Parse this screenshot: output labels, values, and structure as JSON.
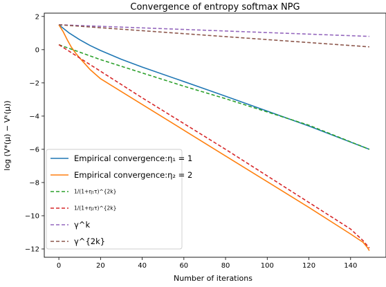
{
  "chart_data": {
    "type": "line",
    "title": "Convergence of entropy softmax NPG",
    "xlabel": "Number of iterations",
    "ylabel": "log (V*(μ) − Vᵏ(μ))",
    "xlim": [
      -7,
      157
    ],
    "ylim": [
      -12.5,
      2.2
    ],
    "xticks": [
      0,
      20,
      40,
      60,
      80,
      100,
      120,
      140
    ],
    "yticks": [
      -12,
      -10,
      -8,
      -6,
      -4,
      -2,
      0,
      2
    ],
    "grid": false,
    "legend_position": "lower-left",
    "series": [
      {
        "name": "Empirical convergence:η₁ = 1",
        "color": "#1f77b4",
        "style": "solid",
        "x": [
          0,
          2,
          5,
          10,
          15,
          20,
          30,
          40,
          60,
          80,
          100,
          120,
          149
        ],
        "y": [
          1.5,
          1.3,
          1.0,
          0.6,
          0.25,
          -0.05,
          -0.58,
          -1.05,
          -1.92,
          -2.8,
          -3.7,
          -4.6,
          -6.0
        ]
      },
      {
        "name": "Empirical convergence:η₂ = 2",
        "color": "#ff7f0e",
        "style": "solid",
        "x": [
          0,
          2,
          4,
          6,
          8,
          10,
          15,
          20,
          40,
          60,
          80,
          100,
          120,
          140,
          146,
          148,
          149
        ],
        "y": [
          1.5,
          1.1,
          0.6,
          0.15,
          -0.2,
          -0.5,
          -1.2,
          -1.75,
          -3.3,
          -4.85,
          -6.4,
          -7.95,
          -9.5,
          -11.1,
          -11.6,
          -11.9,
          -12.1
        ]
      },
      {
        "name": "1/(1+η₁τ)^{2k}",
        "color": "#2ca02c",
        "style": "dashed",
        "x": [
          0,
          20,
          40,
          60,
          80,
          100,
          120,
          149
        ],
        "y": [
          0.3,
          -0.6,
          -1.4,
          -2.2,
          -2.95,
          -3.75,
          -4.55,
          -6.0
        ]
      },
      {
        "name": "1/(1+η₂τ)^{2k}",
        "color": "#d62728",
        "style": "dashed",
        "x": [
          0,
          20,
          40,
          60,
          80,
          100,
          120,
          140,
          146,
          148,
          149
        ],
        "y": [
          0.3,
          -1.3,
          -2.9,
          -4.45,
          -6.0,
          -7.6,
          -9.2,
          -10.8,
          -11.5,
          -11.8,
          -11.95
        ]
      },
      {
        "name": "γ^k",
        "color": "#9467bd",
        "style": "dashed",
        "x": [
          0,
          149
        ],
        "y": [
          1.5,
          0.8
        ]
      },
      {
        "name": "γ^{2k}",
        "color": "#8c564b",
        "style": "dashed",
        "x": [
          0,
          149
        ],
        "y": [
          1.5,
          0.17
        ]
      }
    ]
  }
}
